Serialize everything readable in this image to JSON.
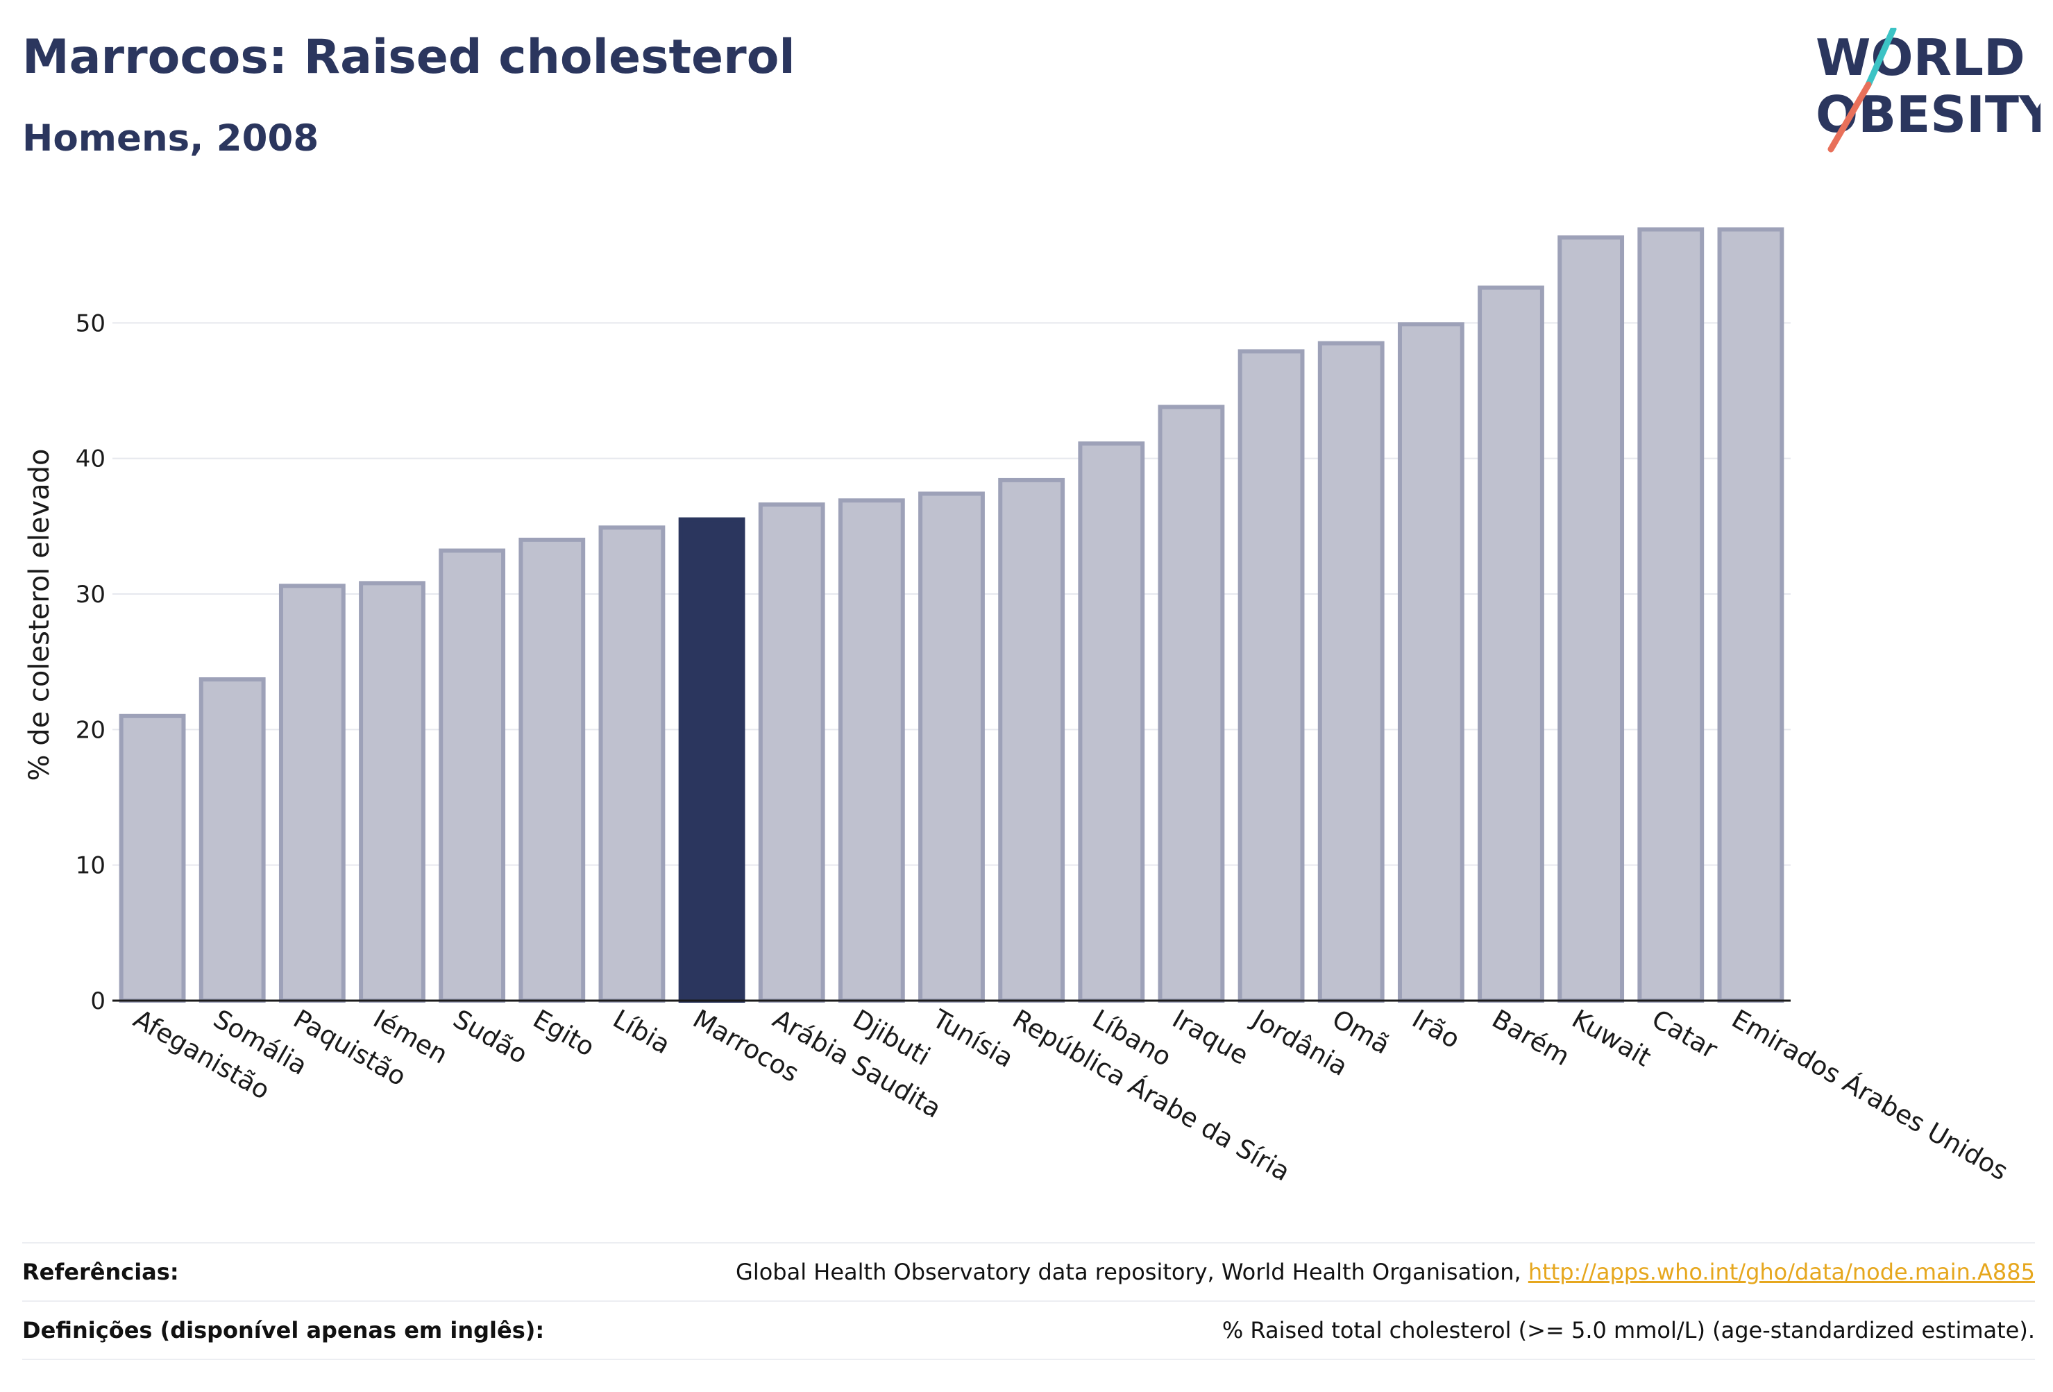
{
  "header": {
    "title": "Marrocos: Raised cholesterol",
    "subtitle": "Homens, 2008"
  },
  "logo": {
    "line1": "WORLD",
    "line2": "OBESITY",
    "slash_colors": [
      "#3cc3c5",
      "#e8705a"
    ]
  },
  "colors": {
    "highlight": "#2b365e",
    "bar_fill": "#bfc1cf",
    "bar_stroke": "#9da1b8"
  },
  "chart_data": {
    "type": "bar",
    "ylabel": "% de colesterol elevado",
    "ylim": [
      0,
      60
    ],
    "yticks": [
      0,
      10,
      20,
      30,
      40,
      50
    ],
    "grid": true,
    "highlight": "Marrocos",
    "categories": [
      "Afeganistão",
      "Somália",
      "Paquistão",
      "Iémen",
      "Sudão",
      "Egito",
      "Líbia",
      "Marrocos",
      "Arábia Saudita",
      "Djibuti",
      "Tunísia",
      "República Árabe da Síria",
      "Líbano",
      "Iraque",
      "Jordânia",
      "Omã",
      "Irão",
      "Barém",
      "Kuwait",
      "Catar",
      "Emirados Árabes Unidos"
    ],
    "values": [
      21.0,
      23.7,
      30.6,
      30.8,
      33.2,
      34.0,
      34.9,
      35.5,
      36.6,
      36.9,
      37.4,
      38.4,
      41.1,
      43.8,
      47.9,
      48.5,
      49.9,
      52.6,
      56.3,
      56.9,
      56.9
    ]
  },
  "footer": {
    "references_label": "Referências:",
    "references_text": "Global Health Observatory data repository, World Health Organisation,",
    "references_link": "http://apps.who.int/gho/data/node.main.A885",
    "definitions_label": "Definições (disponível apenas em inglês):",
    "definitions_text": "% Raised total cholesterol (>= 5.0 mmol/L) (age-standardized estimate)."
  }
}
